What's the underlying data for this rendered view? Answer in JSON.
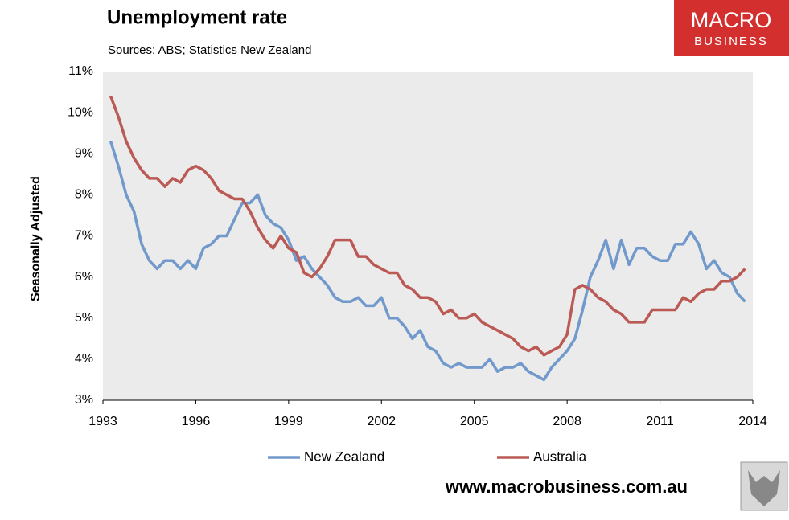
{
  "chart_data": {
    "type": "line",
    "title": "Unemployment rate",
    "subtitle": "Sources: ABS; Statistics New Zealand",
    "y_label": "Seasonally Adjusted",
    "logo": [
      "MACRO",
      "BUSINESS"
    ],
    "footer": "www.macrobusiness.com.au",
    "legend": "bottom",
    "grid": false,
    "xlim": [
      1993,
      2014
    ],
    "xticks": [
      1993,
      1996,
      1999,
      2002,
      2005,
      2008,
      2011,
      2014
    ],
    "ylim": [
      3,
      11
    ],
    "yticks": [
      {
        "value": 3,
        "label": "3%"
      },
      {
        "value": 4,
        "label": "4%"
      },
      {
        "value": 5,
        "label": "5%"
      },
      {
        "value": 6,
        "label": "6%"
      },
      {
        "value": 7,
        "label": "7%"
      },
      {
        "value": 8,
        "label": "8%"
      },
      {
        "value": 9,
        "label": "9%"
      },
      {
        "value": 10,
        "label": "10%"
      },
      {
        "value": 11,
        "label": "11%"
      }
    ],
    "x": [
      1993.25,
      1993.5,
      1993.75,
      1994,
      1994.25,
      1994.5,
      1994.75,
      1995,
      1995.25,
      1995.5,
      1995.75,
      1996,
      1996.25,
      1996.5,
      1996.75,
      1997,
      1997.25,
      1997.5,
      1997.75,
      1998,
      1998.25,
      1998.5,
      1998.75,
      1999,
      1999.25,
      1999.5,
      1999.75,
      2000,
      2000.25,
      2000.5,
      2000.75,
      2001,
      2001.25,
      2001.5,
      2001.75,
      2002,
      2002.25,
      2002.5,
      2002.75,
      2003,
      2003.25,
      2003.5,
      2003.75,
      2004,
      2004.25,
      2004.5,
      2004.75,
      2005,
      2005.25,
      2005.5,
      2005.75,
      2006,
      2006.25,
      2006.5,
      2006.75,
      2007,
      2007.25,
      2007.5,
      2007.75,
      2008,
      2008.25,
      2008.5,
      2008.75,
      2009,
      2009.25,
      2009.5,
      2009.75,
      2010,
      2010.25,
      2010.5,
      2010.75,
      2011,
      2011.25,
      2011.5,
      2011.75,
      2012,
      2012.25,
      2012.5,
      2012.75,
      2013,
      2013.25,
      2013.5,
      2013.75
    ],
    "series": [
      {
        "name": "New Zealand",
        "color": "#7199cb",
        "values": [
          9.3,
          8.7,
          8.0,
          7.6,
          6.8,
          6.4,
          6.2,
          6.4,
          6.4,
          6.2,
          6.4,
          6.2,
          6.7,
          6.8,
          7.0,
          7.0,
          7.4,
          7.8,
          7.8,
          8.0,
          7.5,
          7.3,
          7.2,
          6.9,
          6.4,
          6.5,
          6.2,
          6.0,
          5.8,
          5.5,
          5.4,
          5.4,
          5.5,
          5.3,
          5.3,
          5.5,
          5.0,
          5.0,
          4.8,
          4.5,
          4.7,
          4.3,
          4.2,
          3.9,
          3.8,
          3.9,
          3.8,
          3.8,
          3.8,
          4.0,
          3.7,
          3.8,
          3.8,
          3.9,
          3.7,
          3.6,
          3.5,
          3.8,
          4.0,
          4.2,
          4.5,
          5.2,
          6.0,
          6.4,
          6.9,
          6.2,
          6.9,
          6.3,
          6.7,
          6.7,
          6.5,
          6.4,
          6.4,
          6.8,
          6.8,
          7.1,
          6.8,
          6.2,
          6.4,
          6.1,
          6.0,
          5.6,
          5.4
        ]
      },
      {
        "name": "Australia",
        "color": "#bb5a55",
        "values": [
          10.4,
          9.9,
          9.3,
          8.9,
          8.6,
          8.4,
          8.4,
          8.2,
          8.4,
          8.3,
          8.6,
          8.7,
          8.6,
          8.4,
          8.1,
          8.0,
          7.9,
          7.9,
          7.6,
          7.2,
          6.9,
          6.7,
          7.0,
          6.7,
          6.6,
          6.1,
          6.0,
          6.2,
          6.5,
          6.9,
          6.9,
          6.9,
          6.5,
          6.5,
          6.3,
          6.2,
          6.1,
          6.1,
          5.8,
          5.7,
          5.5,
          5.5,
          5.4,
          5.1,
          5.2,
          5.0,
          5.0,
          5.1,
          4.9,
          4.8,
          4.7,
          4.6,
          4.5,
          4.3,
          4.2,
          4.3,
          4.1,
          4.2,
          4.3,
          4.6,
          5.7,
          5.8,
          5.7,
          5.5,
          5.4,
          5.2,
          5.1,
          4.9,
          4.9,
          4.9,
          5.2,
          5.2,
          5.2,
          5.2,
          5.5,
          5.4,
          5.6,
          5.7,
          5.7,
          5.9,
          5.9,
          6.0,
          6.2
        ]
      }
    ]
  }
}
